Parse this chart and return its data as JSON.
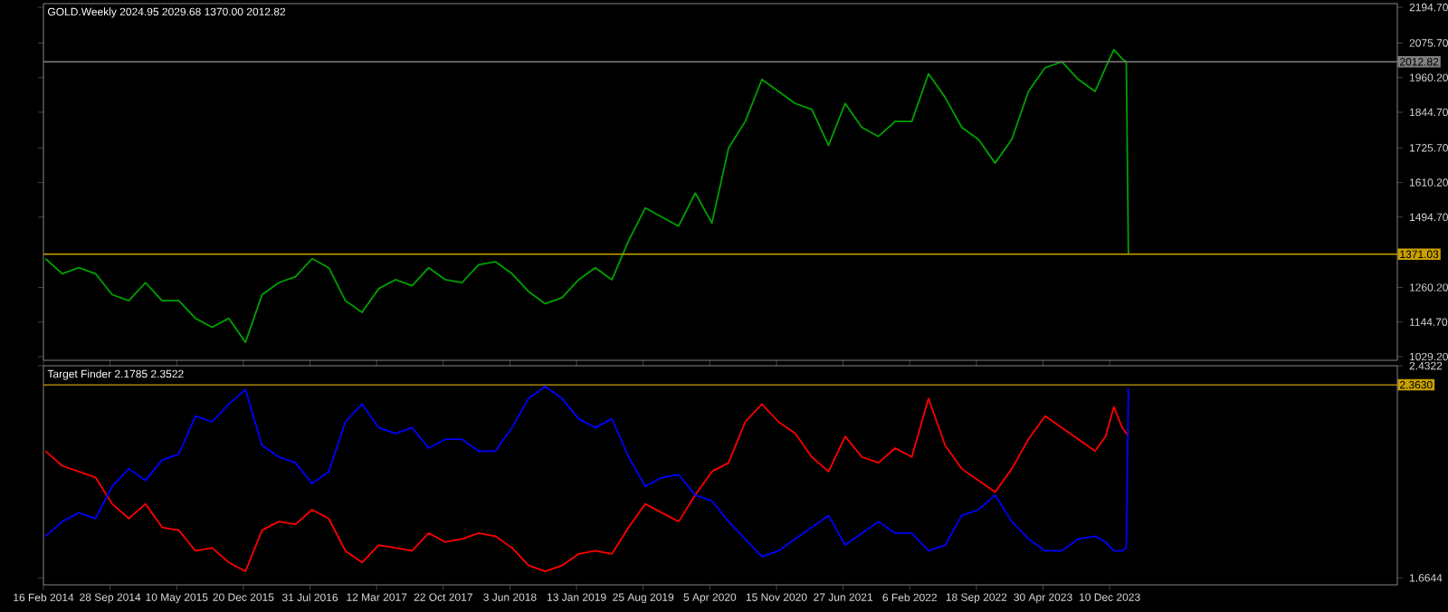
{
  "chart_data": [
    {
      "type": "line",
      "title": "GOLD.Weekly 2024.95 2029.68 1370.00 2012.82",
      "x": [
        "2014-02-23",
        "2014-04-20",
        "2014-06-15",
        "2014-08-10",
        "2014-10-05",
        "2014-11-30",
        "2015-01-25",
        "2015-03-22",
        "2015-05-17",
        "2015-07-12",
        "2015-09-06",
        "2015-11-01",
        "2015-12-27",
        "2016-02-21",
        "2016-04-17",
        "2016-06-12",
        "2016-08-07",
        "2016-10-02",
        "2016-11-27",
        "2017-01-22",
        "2017-03-19",
        "2017-05-14",
        "2017-07-09",
        "2017-09-03",
        "2017-10-29",
        "2017-12-24",
        "2018-02-18",
        "2018-04-15",
        "2018-06-10",
        "2018-08-05",
        "2018-09-30",
        "2018-11-25",
        "2019-01-20",
        "2019-03-17",
        "2019-05-12",
        "2019-07-07",
        "2019-09-01",
        "2019-10-27",
        "2019-12-22",
        "2020-02-16",
        "2020-04-12",
        "2020-06-07",
        "2020-08-02",
        "2020-09-27",
        "2020-11-22",
        "2021-01-17",
        "2021-03-14",
        "2021-05-09",
        "2021-07-04",
        "2021-08-29",
        "2021-10-24",
        "2021-12-19",
        "2022-02-13",
        "2022-04-10",
        "2022-06-05",
        "2022-07-31",
        "2022-09-25",
        "2022-11-20",
        "2023-01-15",
        "2023-03-12",
        "2023-05-07",
        "2023-07-02",
        "2023-08-27",
        "2023-10-22",
        "2023-11-26",
        "2023-12-24",
        "2024-01-21",
        "2024-02-04",
        "2024-02-11"
      ],
      "series": [
        {
          "color": "#00a000",
          "values": [
            1356,
            1306,
            1326,
            1306,
            1236,
            1216,
            1276,
            1216,
            1216,
            1157,
            1127,
            1157,
            1077,
            1236,
            1276,
            1296,
            1356,
            1326,
            1216,
            1177,
            1256,
            1286,
            1266,
            1326,
            1286,
            1276,
            1336,
            1346,
            1306,
            1246,
            1206,
            1226,
            1286,
            1326,
            1286,
            1416,
            1525,
            1495,
            1465,
            1575,
            1475,
            1725,
            1814,
            1954,
            1914,
            1874,
            1854,
            1734,
            1874,
            1794,
            1764,
            1814,
            1814,
            1973,
            1894,
            1794,
            1754,
            1675,
            1754,
            1914,
            1993,
            2013,
            1954,
            1914,
            1993,
            2053,
            2023,
            2013,
            1370
          ]
        }
      ],
      "xlim": [
        "2014-02-16",
        "2026-08-03"
      ],
      "ylim": [
        1017,
        2207
      ],
      "yticks": [
        {
          "value": 2194.7,
          "label": "2194.70"
        },
        {
          "value": 2075.7,
          "label": "2075.70"
        },
        {
          "value": 1960.2,
          "label": "1960.20"
        },
        {
          "value": 1844.7,
          "label": "1844.70"
        },
        {
          "value": 1725.7,
          "label": "1725.70"
        },
        {
          "value": 1610.2,
          "label": "1610.20"
        },
        {
          "value": 1494.7,
          "label": "1494.70"
        },
        {
          "value": 1260.2,
          "label": "1260.20"
        },
        {
          "value": 1144.7,
          "label": "1144.70"
        },
        {
          "value": 1029.2,
          "label": "1029.20"
        }
      ],
      "tick_labels": "y",
      "ref_lines": [
        {
          "axis": "y",
          "value": 2012.82,
          "label": "2012.82",
          "color": "#808080"
        },
        {
          "axis": "y",
          "value": 1371.03,
          "label": "1371.03",
          "color": "#c8a000"
        }
      ]
    },
    {
      "type": "line",
      "title": "Target Finder 2.1785 2.3522",
      "x": [
        "2014-02-23",
        "2014-04-20",
        "2014-06-15",
        "2014-08-10",
        "2014-10-05",
        "2014-11-30",
        "2015-01-25",
        "2015-03-22",
        "2015-05-17",
        "2015-07-12",
        "2015-09-06",
        "2015-11-01",
        "2015-12-27",
        "2016-02-21",
        "2016-04-17",
        "2016-06-12",
        "2016-08-07",
        "2016-10-02",
        "2016-11-27",
        "2017-01-22",
        "2017-03-19",
        "2017-05-14",
        "2017-07-09",
        "2017-09-03",
        "2017-10-29",
        "2017-12-24",
        "2018-02-18",
        "2018-04-15",
        "2018-06-10",
        "2018-08-05",
        "2018-09-30",
        "2018-11-25",
        "2019-01-20",
        "2019-03-17",
        "2019-05-12",
        "2019-07-07",
        "2019-09-01",
        "2019-10-27",
        "2019-12-22",
        "2020-02-16",
        "2020-04-12",
        "2020-06-07",
        "2020-08-02",
        "2020-09-27",
        "2020-11-22",
        "2021-01-17",
        "2021-03-14",
        "2021-05-09",
        "2021-07-04",
        "2021-08-29",
        "2021-10-24",
        "2021-12-19",
        "2022-02-13",
        "2022-04-10",
        "2022-06-05",
        "2022-07-31",
        "2022-09-25",
        "2022-11-20",
        "2023-01-15",
        "2023-03-12",
        "2023-05-07",
        "2023-07-02",
        "2023-08-27",
        "2023-10-22",
        "2023-11-26",
        "2023-12-24",
        "2024-01-21",
        "2024-02-04",
        "2024-02-11"
      ],
      "series": [
        {
          "color": "#ff0000",
          "values": [
            2.123,
            2.07,
            2.049,
            2.028,
            1.932,
            1.879,
            1.932,
            1.847,
            1.837,
            1.762,
            1.773,
            1.72,
            1.688,
            1.837,
            1.868,
            1.858,
            1.911,
            1.879,
            1.762,
            1.72,
            1.783,
            1.773,
            1.762,
            1.826,
            1.794,
            1.805,
            1.826,
            1.815,
            1.773,
            1.709,
            1.688,
            1.709,
            1.751,
            1.762,
            1.751,
            1.847,
            1.932,
            1.9,
            1.868,
            1.964,
            2.049,
            2.081,
            2.229,
            2.293,
            2.229,
            2.187,
            2.102,
            2.049,
            2.176,
            2.102,
            2.081,
            2.134,
            2.102,
            2.314,
            2.144,
            2.059,
            2.017,
            1.975,
            2.059,
            2.166,
            2.25,
            2.208,
            2.166,
            2.123,
            2.176,
            2.283,
            2.208,
            2.187,
            2.18
          ]
        },
        {
          "color": "#0000ff",
          "values": [
            1.815,
            1.868,
            1.9,
            1.879,
            1.996,
            2.059,
            2.017,
            2.091,
            2.112,
            2.25,
            2.229,
            2.293,
            2.346,
            2.144,
            2.102,
            2.081,
            2.006,
            2.049,
            2.229,
            2.293,
            2.208,
            2.187,
            2.208,
            2.134,
            2.166,
            2.166,
            2.123,
            2.123,
            2.208,
            2.314,
            2.357,
            2.314,
            2.24,
            2.208,
            2.24,
            2.102,
            1.996,
            2.028,
            2.038,
            1.964,
            1.943,
            1.868,
            1.805,
            1.741,
            1.762,
            1.805,
            1.847,
            1.89,
            1.783,
            1.826,
            1.868,
            1.826,
            1.826,
            1.762,
            1.783,
            1.89,
            1.911,
            1.964,
            1.868,
            1.805,
            1.762,
            1.762,
            1.805,
            1.815,
            1.794,
            1.762,
            1.762,
            1.773,
            2.35
          ]
        }
      ],
      "xlim": [
        "2014-02-16",
        "2026-08-03"
      ],
      "ylim": [
        1.639,
        2.4322
      ],
      "yticks": [
        2.4322,
        1.6644
      ],
      "xticks": [
        {
          "value": "2014-02-16",
          "label": "16 Feb 2014"
        },
        {
          "value": "2014-09-28",
          "label": "28 Sep 2014"
        },
        {
          "value": "2015-05-10",
          "label": "10 May 2015"
        },
        {
          "value": "2015-12-20",
          "label": "20 Dec 2015"
        },
        {
          "value": "2016-07-31",
          "label": "31 Jul 2016"
        },
        {
          "value": "2017-03-12",
          "label": "12 Mar 2017"
        },
        {
          "value": "2017-10-22",
          "label": "22 Oct 2017"
        },
        {
          "value": "2018-06-03",
          "label": "3 Jun 2018"
        },
        {
          "value": "2019-01-13",
          "label": "13 Jan 2019"
        },
        {
          "value": "2019-08-25",
          "label": "25 Aug 2019"
        },
        {
          "value": "2020-04-05",
          "label": "5 Apr 2020"
        },
        {
          "value": "2020-11-15",
          "label": "15 Nov 2020"
        },
        {
          "value": "2021-06-27",
          "label": "27 Jun 2021"
        },
        {
          "value": "2022-02-06",
          "label": "6 Feb 2022"
        },
        {
          "value": "2022-09-18",
          "label": "18 Sep 2022"
        },
        {
          "value": "2023-04-30",
          "label": "30 Apr 2023"
        },
        {
          "value": "2023-12-10",
          "label": "10 Dec 2023"
        }
      ],
      "ref_lines": [
        {
          "axis": "y",
          "value": 2.363,
          "label": "2.3630",
          "color": "#c8a000"
        }
      ]
    }
  ]
}
